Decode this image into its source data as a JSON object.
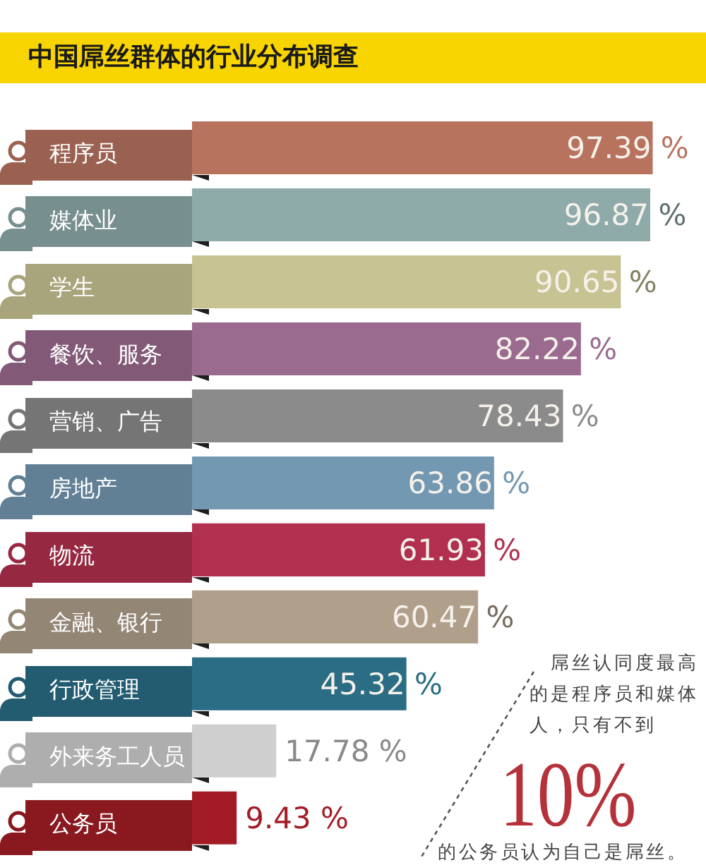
{
  "chart_data": {
    "type": "bar",
    "orientation": "horizontal",
    "title": "中国屌丝群体的行业分布调查",
    "categories": [
      "程序员",
      "媒体业",
      "学生",
      "餐饮、服务",
      "营销、广告",
      "房地产",
      "物流",
      "金融、银行",
      "行政管理",
      "外来务工人员",
      "公务员"
    ],
    "values": [
      97.39,
      96.87,
      90.65,
      82.22,
      78.43,
      63.86,
      61.93,
      60.47,
      45.32,
      17.78,
      9.43
    ],
    "colors": [
      "#b8735f",
      "#8eaaa9",
      "#c8c393",
      "#9b6b8f",
      "#8b8b8b",
      "#7398b2",
      "#b2304f",
      "#b0a08b",
      "#2a6d85",
      "#cfcfcf",
      "#a31c25"
    ],
    "value_labels": [
      "97.39 %",
      "96.87 %",
      "90.65 %",
      "82.22 %",
      "78.43 %",
      "63.86 %",
      "61.93 %",
      "60.47 %",
      "45.32 %",
      "17.78 %",
      "9.43 %"
    ],
    "annotations": [
      "屌丝认同度最高的是程序员和媒体人，只有不到",
      "10%",
      "的公务员认为自己是屌丝。"
    ]
  }
}
